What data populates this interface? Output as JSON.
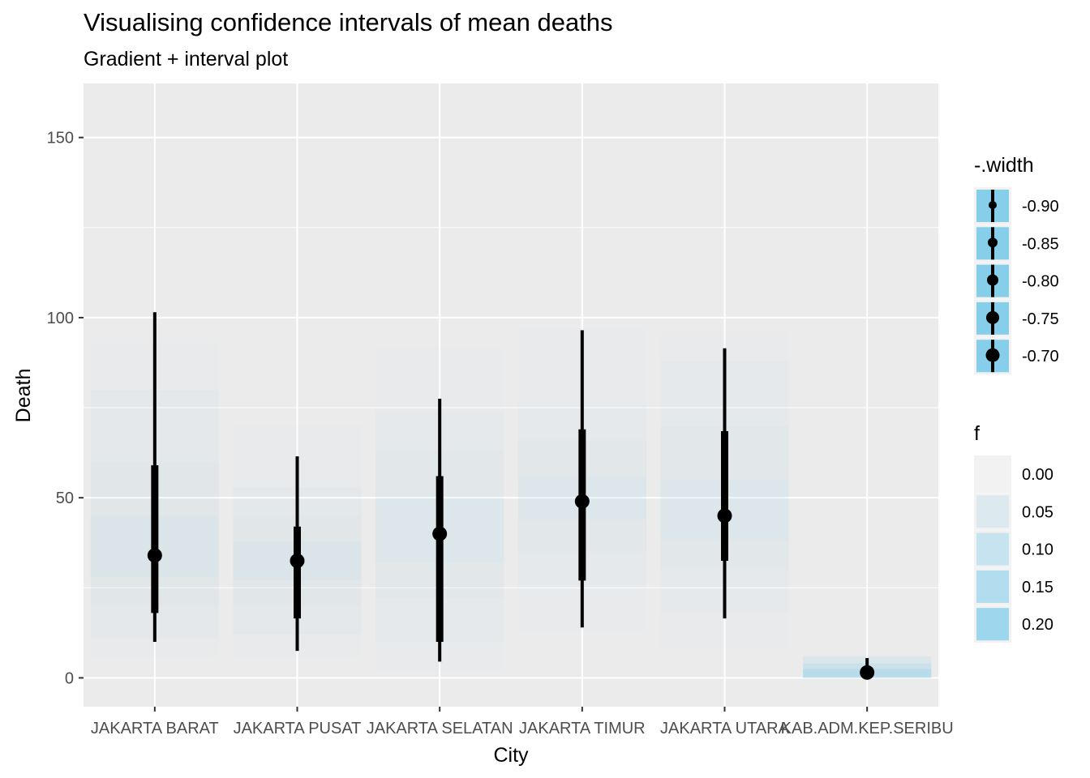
{
  "chart_data": {
    "type": "interval",
    "title": "Visualising confidence intervals of mean deaths",
    "subtitle": "Gradient + interval plot",
    "xlabel": "City",
    "ylabel": "Death",
    "ylim": [
      -8,
      165
    ],
    "yticks": [
      0,
      50,
      100,
      150
    ],
    "grid": true,
    "categories": [
      "JAKARTA BARAT",
      "JAKARTA PUSAT",
      "JAKARTA SELATAN",
      "JAKARTA TIMUR",
      "JAKARTA UTARA",
      "KAB.ADM.KEP.SERIBU"
    ],
    "points": [
      34,
      32.5,
      40,
      49,
      45,
      1.5
    ],
    "intervals_thick": [
      [
        18,
        59
      ],
      [
        16.5,
        42
      ],
      [
        10,
        56
      ],
      [
        27,
        69
      ],
      [
        32.5,
        68.5
      ],
      [
        0.5,
        2.5
      ]
    ],
    "intervals_thin": [
      [
        10,
        101.5
      ],
      [
        7.5,
        61.5
      ],
      [
        4.5,
        77.5
      ],
      [
        14,
        96.5
      ],
      [
        16.5,
        91.5
      ],
      [
        0,
        5.5
      ]
    ],
    "gradient_bands": [
      [
        [
          6,
          93,
          0.02
        ],
        [
          11,
          80,
          0.03
        ],
        [
          20,
          60,
          0.045
        ],
        [
          28,
          45,
          0.06
        ]
      ],
      [
        [
          6,
          70,
          0.02
        ],
        [
          12,
          53,
          0.03
        ],
        [
          20,
          45,
          0.045
        ],
        [
          27,
          38,
          0.06
        ]
      ],
      [
        [
          2,
          92,
          0.015
        ],
        [
          10,
          74,
          0.025
        ],
        [
          22,
          63,
          0.04
        ],
        [
          32,
          50,
          0.05
        ]
      ],
      [
        [
          13,
          97,
          0.015
        ],
        [
          25,
          76,
          0.025
        ],
        [
          35,
          66,
          0.04
        ],
        [
          44,
          56,
          0.05
        ]
      ],
      [
        [
          8,
          96,
          0.015
        ],
        [
          18,
          88,
          0.025
        ],
        [
          30,
          70,
          0.04
        ],
        [
          38,
          55,
          0.05
        ]
      ],
      [
        [
          0,
          6,
          0.16
        ],
        [
          0,
          4,
          0.2
        ],
        [
          0,
          2.5,
          0.24
        ]
      ]
    ],
    "legend_width": {
      "title": "-.width",
      "labels": [
        "-0.90",
        "-0.85",
        "-0.80",
        "-0.75",
        "-0.70"
      ],
      "sizes": [
        5,
        6,
        7,
        8,
        8.5
      ]
    },
    "legend_f": {
      "title": "f",
      "labels": [
        "0.00",
        "0.05",
        "0.10",
        "0.15",
        "0.20"
      ],
      "alphas": [
        0,
        0.05,
        0.1,
        0.15,
        0.2
      ]
    },
    "legend_position": "right",
    "colors": {
      "panel": "#EBEBEB",
      "grid": "#FFFFFF",
      "fill": "#87CEEB",
      "interval": "#000000",
      "tick_text": "#4D4D4D"
    }
  }
}
